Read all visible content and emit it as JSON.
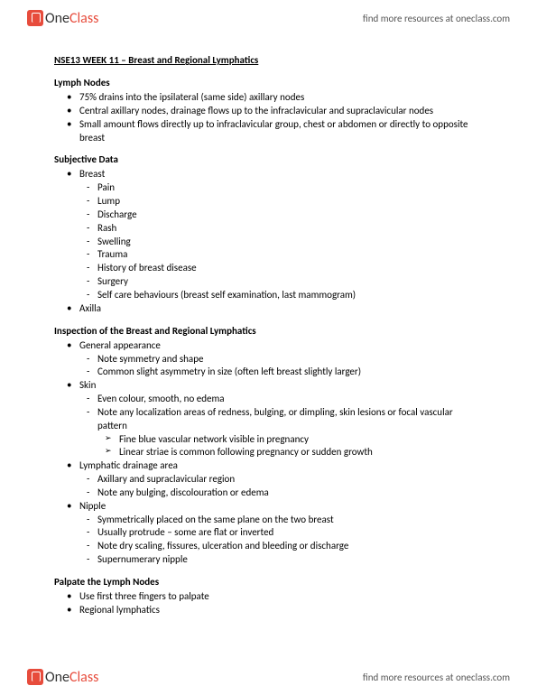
{
  "header": {
    "logo_one": "One",
    "logo_class": "Class",
    "resources": "find more resources at oneclass.com"
  },
  "doc": {
    "title": "NSE13 WEEK 11 – Breast and Regional Lymphatics",
    "sections": {
      "lymph_nodes": {
        "header": "Lymph Nodes",
        "b1": "75% drains into the ipsilateral (same side) axillary nodes",
        "b2": "Central axillary nodes, drainage flows up to the infraclavicular and supraclavicular nodes",
        "b3": "Small amount flows directly up to infraclavicular group, chest or abdomen or directly to opposite breast"
      },
      "subjective": {
        "header": "Subjective Data",
        "b1": "Breast",
        "d1": "Pain",
        "d2": "Lump",
        "d3": "Discharge",
        "d4": "Rash",
        "d5": "Swelling",
        "d6": "Trauma",
        "d7": "History of breast disease",
        "d8": "Surgery",
        "d9": "Self care behaviours (breast self examination, last mammogram)",
        "b2": "Axilla"
      },
      "inspection": {
        "header": "Inspection of the Breast and Regional Lymphatics",
        "b1": "General appearance",
        "b1d1": "Note symmetry and shape",
        "b1d2": "Common slight asymmetry in size (often left breast slightly larger)",
        "b2": "Skin",
        "b2d1": "Even colour, smooth, no edema",
        "b2d2": "Note any localization areas of redness, bulging, or dimpling, skin lesions or focal vascular pattern",
        "b2a1": "Fine blue vascular network visible in pregnancy",
        "b2a2": "Linear striae is common following pregnancy or sudden growth",
        "b3": "Lymphatic drainage area",
        "b3d1": "Axillary and supraclavicular region",
        "b3d2": "Note any bulging, discolouration or edema",
        "b4": "Nipple",
        "b4d1": "Symmetrically placed on the same plane on the two breast",
        "b4d2": "Usually protrude – some are flat or inverted",
        "b4d3": "Note dry scaling, fissures, ulceration and bleeding or discharge",
        "b4d4": "Supernumerary nipple"
      },
      "palpate": {
        "header": "Palpate the Lymph Nodes",
        "b1": "Use first three fingers to palpate",
        "b2": "Regional lymphatics"
      }
    }
  }
}
